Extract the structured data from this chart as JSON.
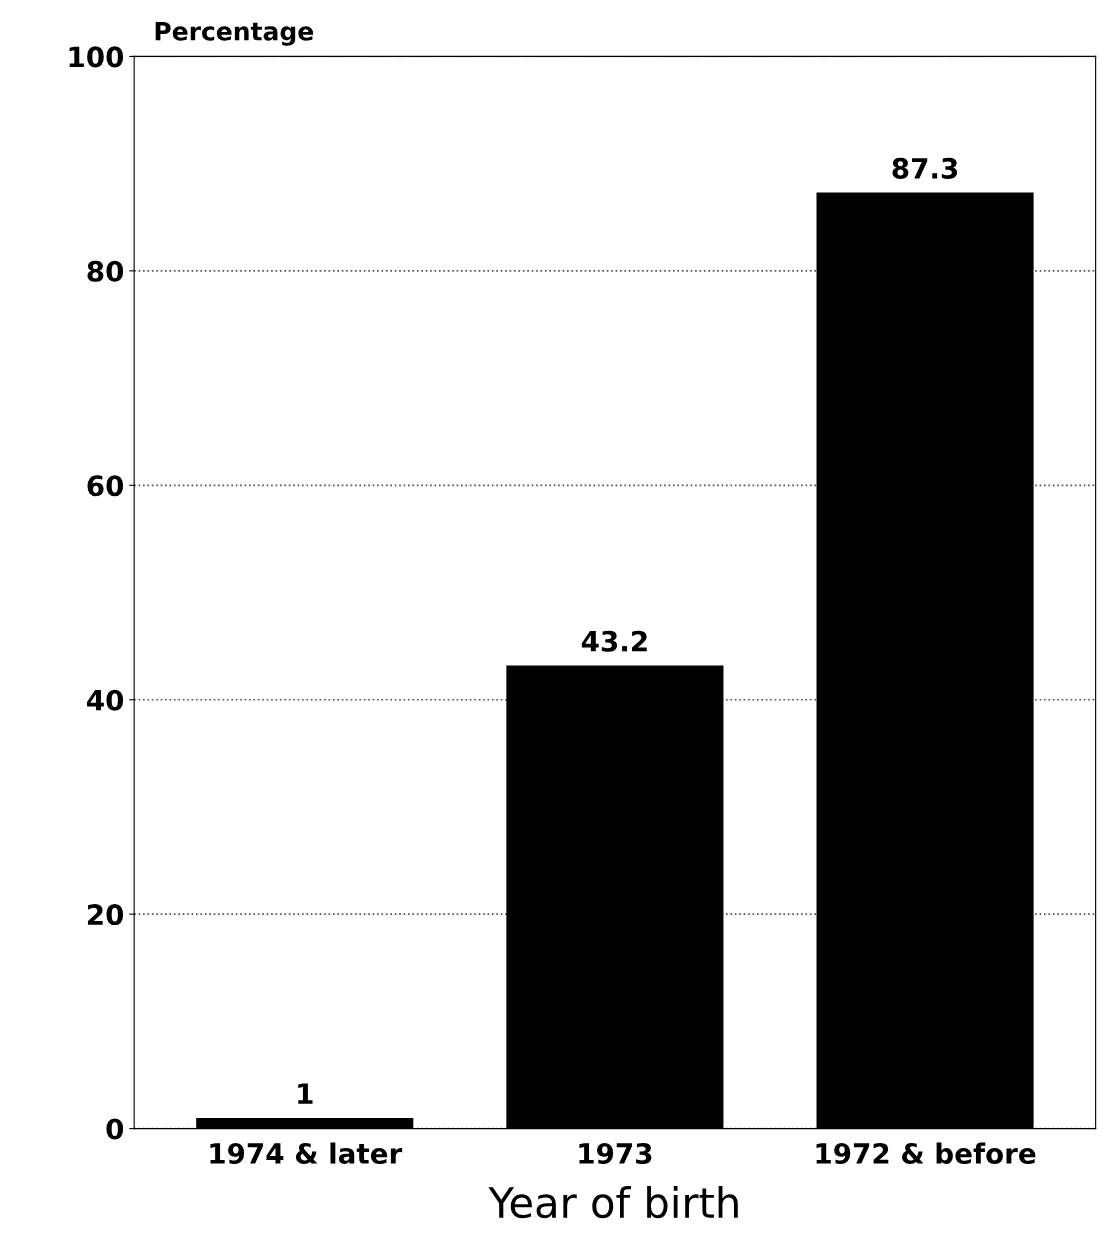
{
  "chart_data": {
    "type": "bar",
    "xlabel": "Year of birth",
    "ylabel": "Percentage",
    "categories": [
      "1974 & later",
      "1973",
      "1972 & before"
    ],
    "values": [
      1,
      43.2,
      87.3
    ],
    "color": "#000000",
    "ylim": [
      0,
      100
    ],
    "yticks": [
      0,
      20,
      40,
      60,
      80,
      100
    ],
    "grid": "y",
    "data_labels": true
  }
}
